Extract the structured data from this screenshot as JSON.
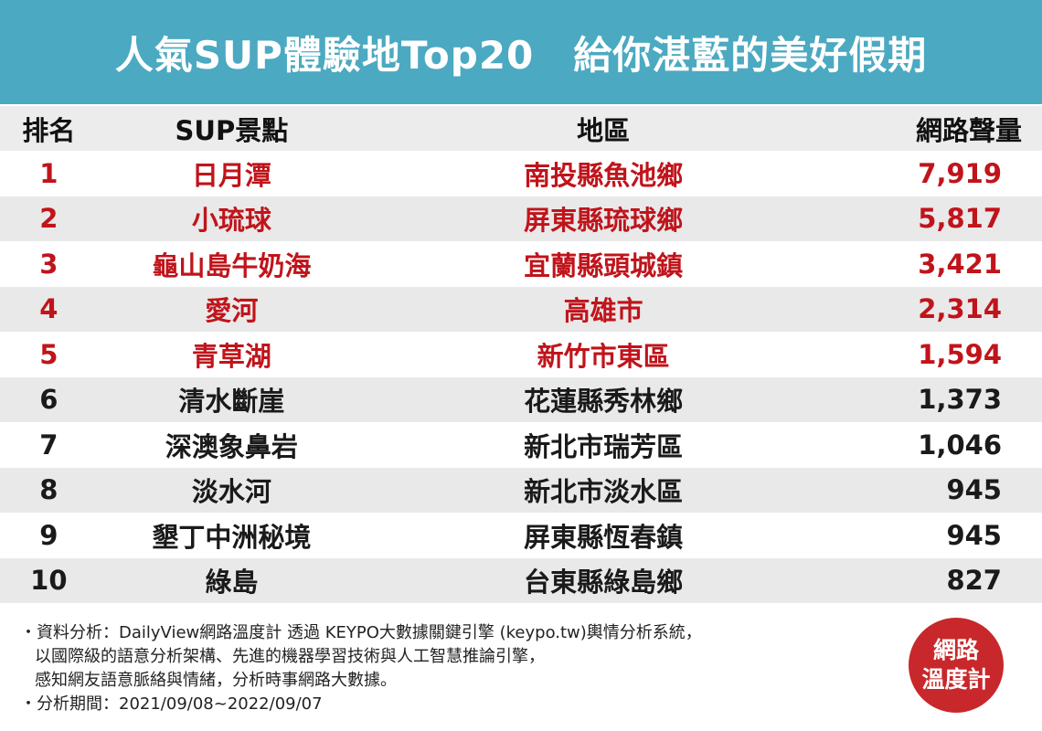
{
  "header": {
    "title": "人氣SUP體驗地Top20　給你湛藍的美好假期"
  },
  "table": {
    "columns": [
      "排名",
      "SUP景點",
      "地區",
      "網路聲量"
    ],
    "rows": [
      [
        "1",
        "日月潭",
        "南投縣魚池鄉",
        "7,919"
      ],
      [
        "2",
        "小琉球",
        "屏東縣琉球鄉",
        "5,817"
      ],
      [
        "3",
        "龜山島牛奶海",
        "宜蘭縣頭城鎮",
        "3,421"
      ],
      [
        "4",
        "愛河",
        "高雄市",
        "2,314"
      ],
      [
        "5",
        "青草湖",
        "新竹市東區",
        "1,594"
      ],
      [
        "6",
        "清水斷崖",
        "花蓮縣秀林鄉",
        "1,373"
      ],
      [
        "7",
        "深澳象鼻岩",
        "新北市瑞芳區",
        "1,046"
      ],
      [
        "8",
        "淡水河",
        "新北市淡水區",
        "945"
      ],
      [
        "9",
        "墾丁中洲秘境",
        "屏東縣恆春鎮",
        "945"
      ],
      [
        "10",
        "綠島",
        "台東縣綠島鄉",
        "827"
      ]
    ]
  },
  "notes": [
    "・資料分析：DailyView網路溫度計 透過 KEYPO大數據關鍵引擎 (keypo.tw)輿情分析系統，",
    "以國際級的語意分析架構、先進的機器學習技術與人工智慧推論引擎，",
    "感知網友語意脈絡與情緒，分析時事網路大數據。",
    "・分析期間：2021/09/08~2022/09/07"
  ],
  "logo": [
    "網路",
    "溫度計"
  ]
}
